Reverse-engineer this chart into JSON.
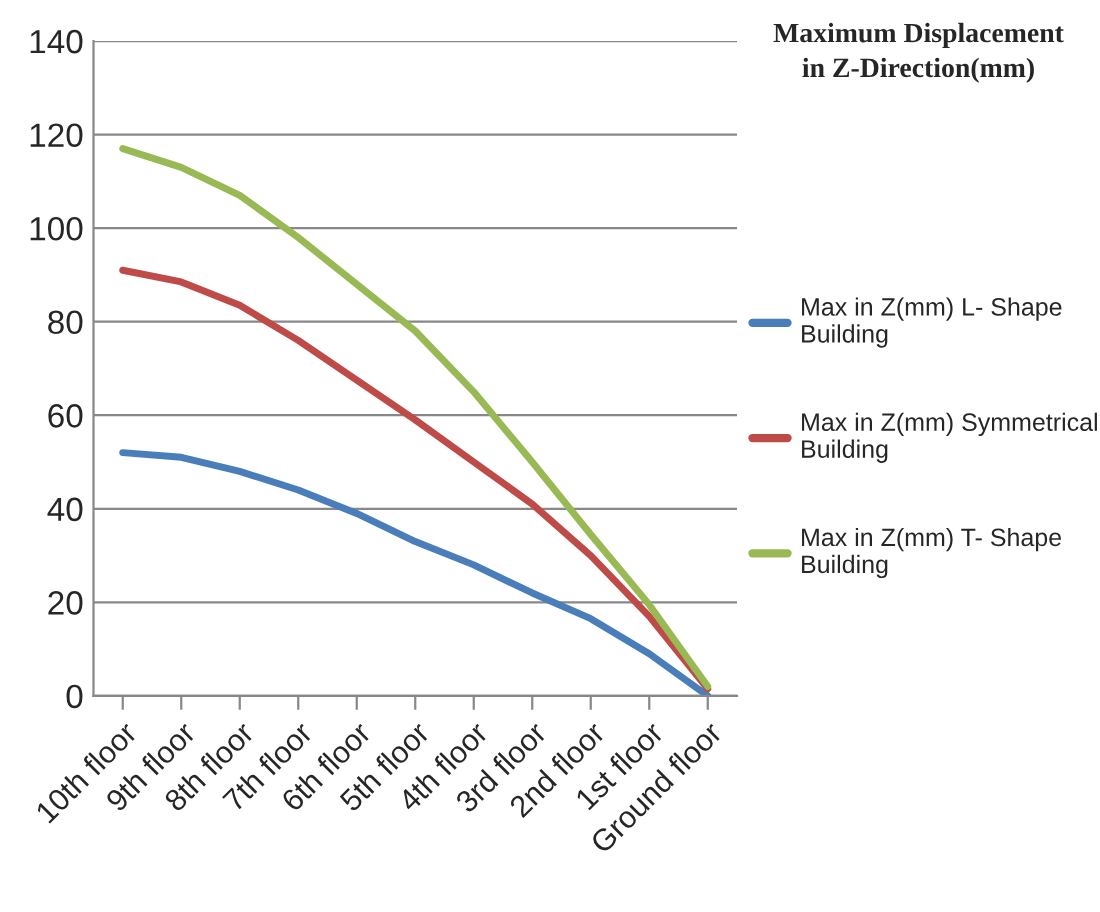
{
  "chart_data": {
    "type": "line",
    "title": "Maximum Displacement\nin Z-Direction(mm)",
    "categories": [
      "10th floor",
      "9th floor",
      "8th floor",
      "7th floor",
      "6th floor",
      "5th floor",
      "4th floor",
      "3rd floor",
      "2nd floor",
      "1st floor",
      "Ground floor"
    ],
    "series": [
      {
        "name": "Max in Z(mm) L- Shape Building",
        "color": "#4a7ebb",
        "values": [
          52,
          51,
          48,
          44,
          39,
          33,
          28,
          22,
          16.5,
          9,
          0
        ]
      },
      {
        "name": "Max in Z(mm) Symmetrical Building",
        "color": "#be4b48",
        "values": [
          91,
          88.5,
          83.5,
          76,
          67.5,
          59,
          50,
          41,
          30,
          17,
          1.5
        ]
      },
      {
        "name": "Max in Z(mm) T- Shape Building",
        "color": "#98b954",
        "values": [
          117,
          113,
          107,
          98,
          88,
          78,
          65,
          50,
          34.5,
          19.5,
          2
        ]
      }
    ],
    "ylim": [
      0,
      140
    ],
    "yticks": [
      0,
      20,
      40,
      60,
      80,
      100,
      120,
      140
    ],
    "grid": "y",
    "legend": "right",
    "marker": "none",
    "line_style": "solid"
  }
}
